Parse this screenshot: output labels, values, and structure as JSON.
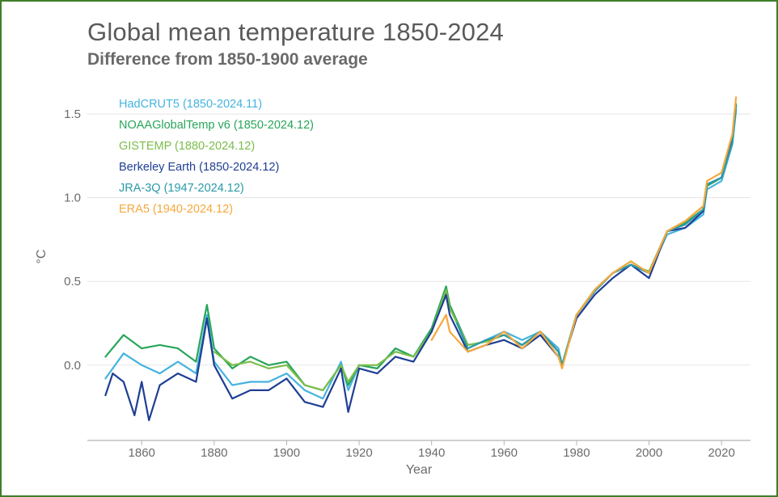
{
  "chart_data": {
    "type": "line",
    "title": "Global mean temperature 1850-2024",
    "subtitle": "Difference from 1850-1900 average",
    "xlabel": "Year",
    "ylabel": "°C",
    "xlim": [
      1845,
      2028
    ],
    "ylim": [
      -0.45,
      1.65
    ],
    "xticks": [
      1860,
      1880,
      1900,
      1920,
      1940,
      1960,
      1980,
      2000,
      2020
    ],
    "yticks": [
      0.0,
      0.5,
      1.0,
      1.5
    ],
    "ytick_labels": [
      "0.0",
      "0.5",
      "1.0",
      "1.5"
    ],
    "grid": "horizontal",
    "legend_position": "top-left",
    "colors": {
      "hadcrut5": "#45b3e0",
      "noaa": "#27a65a",
      "gistemp": "#7cbd4a",
      "berkeley": "#1f3f93",
      "jra3q": "#2a9aa8",
      "era5": "#f5a83c",
      "frame": "#3f7e2a",
      "grid": "#e5e5e5"
    },
    "series": [
      {
        "name": "HadCRUT5 (1850-2024.11)",
        "key": "hadcrut5",
        "x": [
          1850,
          1855,
          1860,
          1865,
          1870,
          1875,
          1877,
          1878,
          1880,
          1885,
          1890,
          1895,
          1900,
          1905,
          1910,
          1915,
          1917,
          1920,
          1925,
          1930,
          1935,
          1940,
          1944,
          1945,
          1950,
          1955,
          1960,
          1965,
          1970,
          1975,
          1976,
          1980,
          1985,
          1990,
          1995,
          2000,
          2005,
          2010,
          2015,
          2016,
          2020,
          2023,
          2024
        ],
        "y": [
          -0.08,
          0.07,
          0.0,
          -0.05,
          0.02,
          -0.05,
          0.18,
          0.3,
          0.02,
          -0.12,
          -0.1,
          -0.1,
          -0.05,
          -0.15,
          -0.2,
          0.02,
          -0.15,
          0.0,
          -0.02,
          0.1,
          0.05,
          0.2,
          0.45,
          0.35,
          0.1,
          0.15,
          0.2,
          0.15,
          0.2,
          0.1,
          0.0,
          0.3,
          0.45,
          0.55,
          0.6,
          0.55,
          0.78,
          0.82,
          0.9,
          1.05,
          1.1,
          1.32,
          1.52
        ]
      },
      {
        "name": "NOAAGlobalTemp v6 (1850-2024.12)",
        "key": "noaa",
        "x": [
          1850,
          1855,
          1860,
          1865,
          1870,
          1875,
          1877,
          1878,
          1880,
          1885,
          1890,
          1895,
          1900,
          1905,
          1910,
          1915,
          1917,
          1920,
          1925,
          1930,
          1935,
          1940,
          1944,
          1945,
          1950,
          1955,
          1960,
          1965,
          1970,
          1975,
          1976,
          1980,
          1985,
          1990,
          1995,
          2000,
          2005,
          2010,
          2015,
          2016,
          2020,
          2023,
          2024
        ],
        "y": [
          0.05,
          0.18,
          0.1,
          0.12,
          0.1,
          0.02,
          0.25,
          0.36,
          0.1,
          -0.02,
          0.05,
          0.0,
          0.02,
          -0.12,
          -0.15,
          0.0,
          -0.12,
          0.0,
          -0.02,
          0.1,
          0.05,
          0.22,
          0.47,
          0.36,
          0.12,
          0.14,
          0.18,
          0.12,
          0.2,
          0.08,
          0.0,
          0.3,
          0.45,
          0.55,
          0.62,
          0.55,
          0.8,
          0.85,
          0.93,
          1.07,
          1.12,
          1.34,
          1.56
        ]
      },
      {
        "name": "GISTEMP (1880-2024.12)",
        "key": "gistemp",
        "x": [
          1880,
          1885,
          1890,
          1895,
          1900,
          1905,
          1910,
          1915,
          1917,
          1920,
          1925,
          1930,
          1935,
          1940,
          1944,
          1945,
          1950,
          1955,
          1960,
          1965,
          1970,
          1975,
          1976,
          1980,
          1985,
          1990,
          1995,
          2000,
          2005,
          2010,
          2015,
          2016,
          2020,
          2023,
          2024
        ],
        "y": [
          0.08,
          0.0,
          0.02,
          -0.02,
          0.0,
          -0.12,
          -0.15,
          0.0,
          -0.1,
          0.0,
          0.0,
          0.08,
          0.05,
          0.2,
          0.45,
          0.34,
          0.12,
          0.14,
          0.18,
          0.12,
          0.2,
          0.08,
          0.0,
          0.3,
          0.45,
          0.55,
          0.6,
          0.56,
          0.8,
          0.86,
          0.95,
          1.08,
          1.12,
          1.35,
          1.55
        ]
      },
      {
        "name": "Berkeley Earth (1850-2024.12)",
        "key": "berkeley",
        "x": [
          1850,
          1852,
          1855,
          1858,
          1860,
          1862,
          1865,
          1870,
          1875,
          1877,
          1878,
          1880,
          1885,
          1890,
          1895,
          1900,
          1905,
          1910,
          1915,
          1917,
          1920,
          1925,
          1930,
          1935,
          1940,
          1944,
          1945,
          1950,
          1955,
          1960,
          1965,
          1970,
          1975,
          1976,
          1980,
          1985,
          1990,
          1995,
          2000,
          2005,
          2010,
          2015,
          2016,
          2020,
          2023,
          2024
        ],
        "y": [
          -0.18,
          -0.05,
          -0.1,
          -0.3,
          -0.1,
          -0.33,
          -0.12,
          -0.05,
          -0.1,
          0.15,
          0.28,
          0.0,
          -0.2,
          -0.15,
          -0.15,
          -0.08,
          -0.22,
          -0.25,
          -0.02,
          -0.28,
          -0.02,
          -0.05,
          0.05,
          0.02,
          0.2,
          0.42,
          0.3,
          0.08,
          0.12,
          0.15,
          0.1,
          0.18,
          0.05,
          0.0,
          0.28,
          0.42,
          0.52,
          0.6,
          0.52,
          0.8,
          0.82,
          0.92,
          1.08,
          1.12,
          1.35,
          1.55
        ]
      },
      {
        "name": "JRA-3Q (1947-2024.12)",
        "key": "jra3q",
        "x": [
          1947,
          1950,
          1955,
          1960,
          1965,
          1970,
          1975,
          1976,
          1980,
          1985,
          1990,
          1995,
          2000,
          2005,
          2010,
          2015,
          2016,
          2020,
          2023,
          2024
        ],
        "y": [
          0.25,
          0.1,
          0.15,
          0.18,
          0.12,
          0.2,
          0.08,
          0.0,
          0.3,
          0.44,
          0.55,
          0.6,
          0.55,
          0.8,
          0.84,
          0.93,
          1.08,
          1.12,
          1.33,
          1.55
        ]
      },
      {
        "name": "ERA5 (1940-2024.12)",
        "key": "era5",
        "x": [
          1940,
          1944,
          1945,
          1950,
          1955,
          1960,
          1965,
          1970,
          1975,
          1976,
          1980,
          1985,
          1990,
          1995,
          2000,
          2005,
          2010,
          2015,
          2016,
          2020,
          2023,
          2024
        ],
        "y": [
          0.15,
          0.3,
          0.2,
          0.08,
          0.12,
          0.2,
          0.1,
          0.2,
          0.05,
          -0.02,
          0.3,
          0.45,
          0.55,
          0.62,
          0.55,
          0.8,
          0.86,
          0.95,
          1.1,
          1.15,
          1.38,
          1.6
        ]
      }
    ]
  }
}
